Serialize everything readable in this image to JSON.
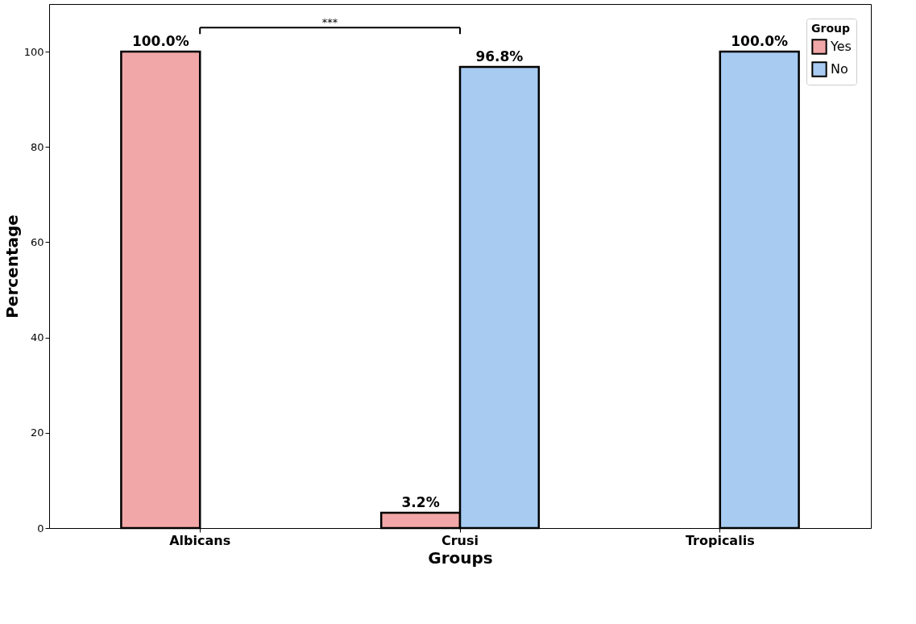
{
  "chart_data": {
    "type": "bar",
    "xlabel": "Groups",
    "ylabel": "Percentage",
    "legend_title": "Group",
    "categories": [
      "Albicans",
      "Crusi",
      "Tropicalis"
    ],
    "series": [
      {
        "name": "Yes",
        "color": "#f1a7a7",
        "values": [
          100.0,
          3.2,
          null
        ],
        "value_labels": [
          "100.0%",
          "3.2%",
          null
        ]
      },
      {
        "name": "No",
        "color": "#a7cbf1",
        "values": [
          null,
          96.8,
          100.0
        ],
        "value_labels": [
          null,
          "96.8%",
          "100.0%"
        ]
      }
    ],
    "ylim": [
      0,
      110
    ],
    "yticks": [
      0,
      20,
      40,
      60,
      80,
      100
    ],
    "grid": false,
    "legend": "top right",
    "annotations": [
      "***"
    ]
  }
}
